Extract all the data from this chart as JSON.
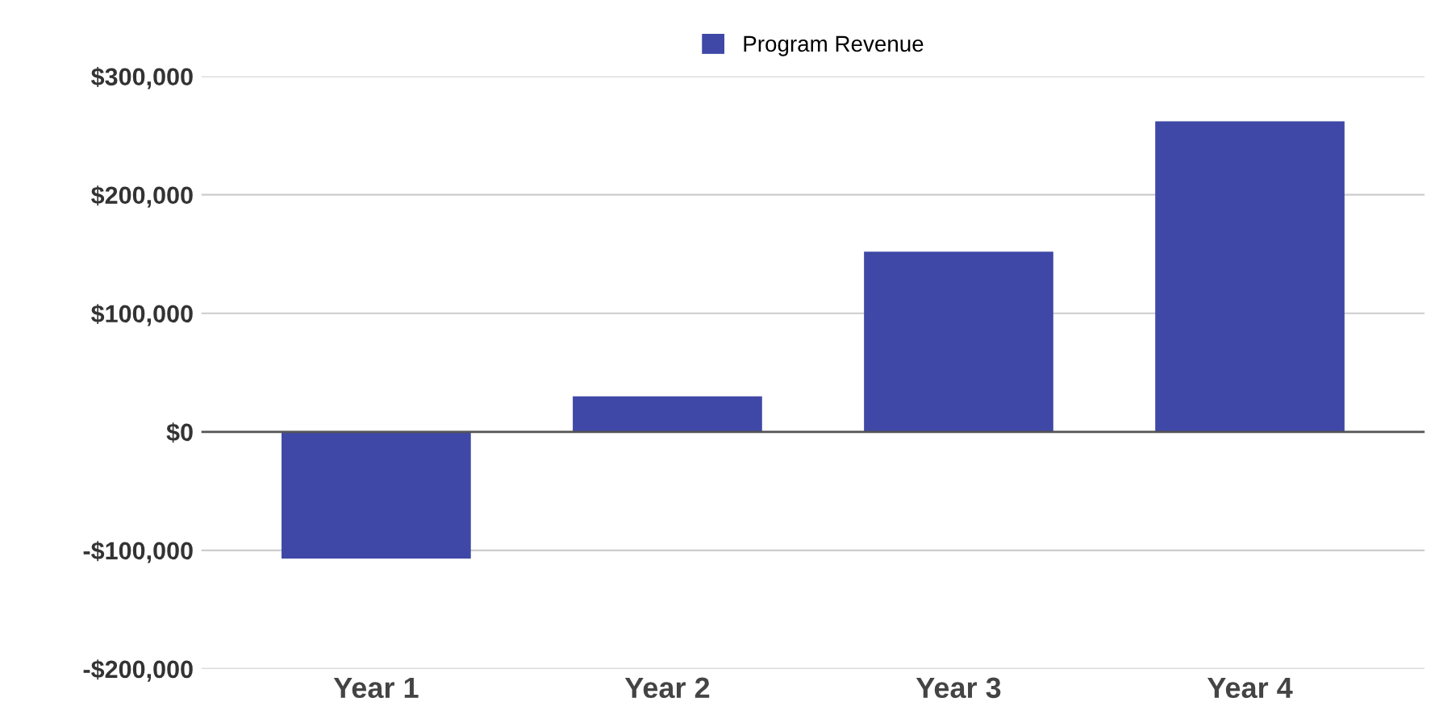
{
  "chart_data": {
    "type": "bar",
    "categories": [
      "Year 1",
      "Year 2",
      "Year 3",
      "Year 4"
    ],
    "series": [
      {
        "name": "Program Revenue",
        "color": "#3f48a6",
        "values": [
          -107000,
          30000,
          152000,
          262000
        ]
      }
    ],
    "ylim": [
      -200000,
      300000
    ],
    "yticks": [
      {
        "value": -200000,
        "label": "-$200,000"
      },
      {
        "value": -100000,
        "label": "-$100,000"
      },
      {
        "value": 0,
        "label": "$0"
      },
      {
        "value": 100000,
        "label": "$100,000"
      },
      {
        "value": 200000,
        "label": "$200,000"
      },
      {
        "value": 300000,
        "label": "$300,000"
      }
    ],
    "grid": "y",
    "legend": "top"
  }
}
